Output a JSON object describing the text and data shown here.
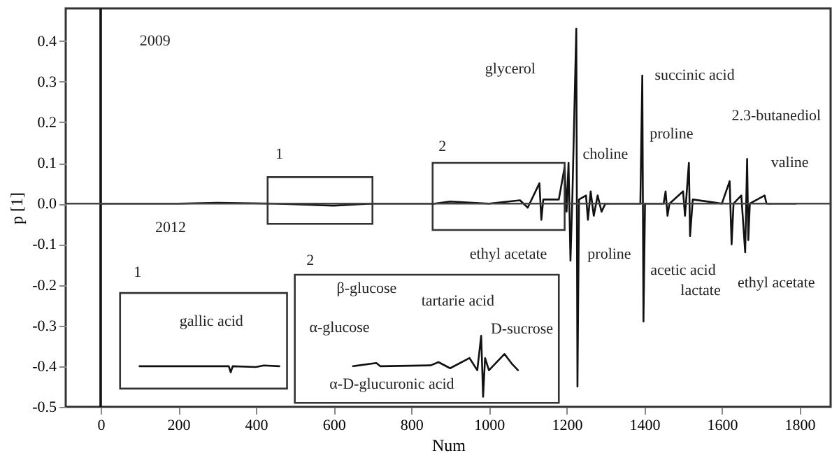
{
  "chart_data": {
    "type": "line",
    "xlabel": "Num",
    "ylabel": "p [1]",
    "xlim": [
      -90,
      1880
    ],
    "ylim": [
      -0.5,
      0.48
    ],
    "xticks": [
      0,
      200,
      400,
      600,
      800,
      {
        "value": 1000,
        "label": "1000"
      },
      {
        "value": 1200,
        "label": "1200"
      },
      {
        "value": 1400,
        "label": "1400"
      },
      {
        "value": 1600,
        "label": "1600"
      },
      {
        "value": 1800,
        "label": "1800"
      }
    ],
    "yticks": [
      {
        "value": -0.5,
        "label": "-0.5"
      },
      {
        "value": -0.4,
        "label": "-0.4"
      },
      {
        "value": -0.3,
        "label": "-0.3"
      },
      {
        "value": -0.2,
        "label": "-0.2"
      },
      {
        "value": -0.1,
        "label": "-0.1"
      },
      {
        "value": 0,
        "label": "0.0"
      },
      {
        "value": 0.1,
        "label": "0.1"
      },
      {
        "value": 0.2,
        "label": "0.2"
      },
      {
        "value": 0.3,
        "label": "0.3"
      },
      {
        "value": 0.4,
        "label": "0.4"
      }
    ],
    "grid": false,
    "line_style": "solid",
    "marker": "none",
    "ref_lines": [
      {
        "axis": "x",
        "value": 0,
        "color": "#111111"
      },
      {
        "axis": "y",
        "value": 0,
        "color": "#444444"
      }
    ],
    "series": [
      {
        "color": "#111111",
        "x": [
          0,
          200,
          300,
          450,
          600,
          700,
          860,
          900,
          1000,
          1080,
          1100,
          1130,
          1135,
          1140,
          1180,
          1195,
          1200,
          1205,
          1210,
          1215,
          1225,
          1228,
          1232,
          1250,
          1255,
          1262,
          1270,
          1280,
          1290,
          1300,
          1390,
          1395,
          1398,
          1402,
          1450,
          1455,
          1460,
          1465,
          1500,
          1505,
          1515,
          1518,
          1525,
          1600,
          1620,
          1625,
          1630,
          1650,
          1660,
          1665,
          1668,
          1672,
          1710,
          1715,
          1790
        ],
        "values": [
          0,
          0,
          0.002,
          0,
          -0.005,
          0,
          0,
          0.005,
          0,
          0.008,
          -0.01,
          0.05,
          -0.04,
          0.01,
          0.01,
          0.09,
          -0.02,
          0.1,
          -0.14,
          0.02,
          0.43,
          -0.45,
          0.01,
          0.02,
          -0.04,
          0.03,
          -0.03,
          0.02,
          -0.02,
          0,
          0,
          0.315,
          -0.29,
          0,
          0,
          0.03,
          -0.03,
          0,
          0.03,
          -0.03,
          0.1,
          -0.08,
          0.01,
          0,
          0.055,
          -0.1,
          0,
          0.02,
          -0.12,
          0.11,
          -0.09,
          0,
          0.02,
          0,
          0
        ]
      },
      {
        "color": "#111111",
        "x": [
          100,
          330,
          335,
          340,
          400,
          420,
          460
        ],
        "values": [
          -0.4,
          -0.4,
          -0.415,
          -0.4,
          -0.402,
          -0.398,
          -0.4
        ]
      },
      {
        "color": "#111111",
        "x": [
          650,
          710,
          720,
          850,
          870,
          900,
          950,
          970,
          980,
          985,
          990,
          1000,
          1040,
          1060,
          1075
        ],
        "values": [
          -0.4,
          -0.392,
          -0.4,
          -0.398,
          -0.39,
          -0.405,
          -0.38,
          -0.41,
          -0.325,
          -0.475,
          -0.38,
          -0.41,
          -0.37,
          -0.395,
          -0.41
        ]
      }
    ],
    "annotations": [
      "2009",
      "2012",
      "1",
      "2",
      "1",
      "2",
      "glycerol",
      "choline",
      "ethyl acetate",
      "proline",
      "succinic acid",
      "proline",
      "2.3-butanediol",
      "valine",
      "acetic acid",
      "lactate",
      "ethyl acetate",
      "gallic acid",
      "β-glucose",
      "tartarie acid",
      "α-glucose",
      "D-sucrose",
      "α-D-glucuronic acid"
    ]
  }
}
